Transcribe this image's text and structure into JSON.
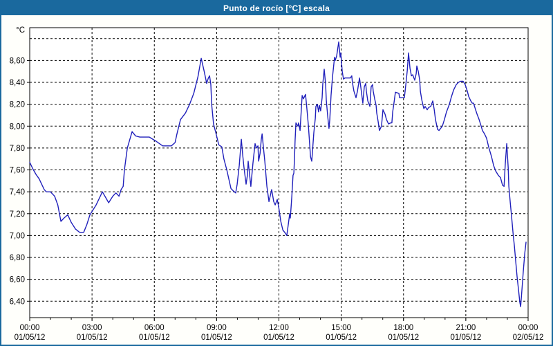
{
  "window": {
    "title": "Punto de rocío [°C] escala"
  },
  "colors": {
    "titlebar_bg": "#1a699e",
    "titlebar_text": "#ffffff",
    "frame_border": "#1a699e",
    "plot_bg": "#ffffff",
    "grid": "#000000",
    "axis": "#000000",
    "series_line": "#2020bb",
    "label_text": "#000000"
  },
  "chart_data": {
    "type": "line",
    "title": "Punto de rocío [°C] escala",
    "y_unit_label": "°C",
    "x_range": [
      0,
      24
    ],
    "y_range": [
      6.25,
      8.9
    ],
    "grid": "dashed",
    "legend_position": "none",
    "y_ticks": [
      {
        "v": 8.6,
        "label": "8,60"
      },
      {
        "v": 8.4,
        "label": "8,40"
      },
      {
        "v": 8.2,
        "label": "8,20"
      },
      {
        "v": 8.0,
        "label": "8,00"
      },
      {
        "v": 7.8,
        "label": "7,80"
      },
      {
        "v": 7.6,
        "label": "7,60"
      },
      {
        "v": 7.4,
        "label": "7,40"
      },
      {
        "v": 7.2,
        "label": "7,20"
      },
      {
        "v": 7.0,
        "label": "7,00"
      },
      {
        "v": 6.8,
        "label": "6,80"
      },
      {
        "v": 6.6,
        "label": "6,60"
      },
      {
        "v": 6.4,
        "label": "6,40"
      }
    ],
    "y_grid_extra": [
      8.8
    ],
    "x_ticks": [
      {
        "t": 0,
        "time": "00:00",
        "date": "01/05/12",
        "grid": false
      },
      {
        "t": 3,
        "time": "03:00",
        "date": "01/05/12",
        "grid": true
      },
      {
        "t": 6,
        "time": "06:00",
        "date": "01/05/12",
        "grid": true
      },
      {
        "t": 9,
        "time": "09:00",
        "date": "01/05/12",
        "grid": true
      },
      {
        "t": 12,
        "time": "12:00",
        "date": "01/05/12",
        "grid": true
      },
      {
        "t": 15,
        "time": "15:00",
        "date": "01/05/12",
        "grid": true
      },
      {
        "t": 18,
        "time": "18:00",
        "date": "01/05/12",
        "grid": true
      },
      {
        "t": 21,
        "time": "21:00",
        "date": "01/05/12",
        "grid": true
      },
      {
        "t": 24,
        "time": "00:00",
        "date": "02/05/12",
        "grid": false
      }
    ],
    "x_minor_tick_hours": 1,
    "series": [
      {
        "name": "Punto de rocío [°C]",
        "color": "#2020bb",
        "points": [
          [
            0,
            7.67
          ],
          [
            0.15,
            7.61
          ],
          [
            0.3,
            7.56
          ],
          [
            0.45,
            7.52
          ],
          [
            0.6,
            7.46
          ],
          [
            0.7,
            7.42
          ],
          [
            0.8,
            7.4
          ],
          [
            1,
            7.4
          ],
          [
            1.2,
            7.36
          ],
          [
            1.35,
            7.28
          ],
          [
            1.5,
            7.13
          ],
          [
            1.65,
            7.16
          ],
          [
            1.83,
            7.19
          ],
          [
            2,
            7.12
          ],
          [
            2.2,
            7.06
          ],
          [
            2.4,
            7.03
          ],
          [
            2.6,
            7.03
          ],
          [
            2.75,
            7.1
          ],
          [
            2.9,
            7.19
          ],
          [
            3,
            7.22
          ],
          [
            3.2,
            7.28
          ],
          [
            3.4,
            7.36
          ],
          [
            3.5,
            7.4
          ],
          [
            3.65,
            7.35
          ],
          [
            3.8,
            7.3
          ],
          [
            4,
            7.36
          ],
          [
            4.15,
            7.39
          ],
          [
            4.3,
            7.36
          ],
          [
            4.4,
            7.42
          ],
          [
            4.5,
            7.45
          ],
          [
            4.56,
            7.6
          ],
          [
            4.7,
            7.8
          ],
          [
            4.93,
            7.95
          ],
          [
            5.1,
            7.91
          ],
          [
            5.3,
            7.9
          ],
          [
            5.76,
            7.9
          ],
          [
            6.1,
            7.86
          ],
          [
            6.4,
            7.82
          ],
          [
            6.82,
            7.82
          ],
          [
            7,
            7.85
          ],
          [
            7.09,
            7.93
          ],
          [
            7.26,
            8.06
          ],
          [
            7.5,
            8.12
          ],
          [
            7.7,
            8.2
          ],
          [
            7.9,
            8.3
          ],
          [
            8.1,
            8.45
          ],
          [
            8.26,
            8.62
          ],
          [
            8.4,
            8.5
          ],
          [
            8.52,
            8.39
          ],
          [
            8.6,
            8.44
          ],
          [
            8.66,
            8.46
          ],
          [
            8.72,
            8.38
          ],
          [
            8.76,
            8.2
          ],
          [
            8.85,
            8.02
          ],
          [
            9,
            7.91
          ],
          [
            9.1,
            7.83
          ],
          [
            9.25,
            7.81
          ],
          [
            9.35,
            7.7
          ],
          [
            9.49,
            7.6
          ],
          [
            9.69,
            7.43
          ],
          [
            9.85,
            7.4
          ],
          [
            9.92,
            7.39
          ],
          [
            9.99,
            7.47
          ],
          [
            10.09,
            7.64
          ],
          [
            10.19,
            7.88
          ],
          [
            10.25,
            7.75
          ],
          [
            10.32,
            7.62
          ],
          [
            10.42,
            7.47
          ],
          [
            10.49,
            7.56
          ],
          [
            10.52,
            7.68
          ],
          [
            10.65,
            7.45
          ],
          [
            10.75,
            7.66
          ],
          [
            10.85,
            7.84
          ],
          [
            10.92,
            7.8
          ],
          [
            10.99,
            7.82
          ],
          [
            11.02,
            7.68
          ],
          [
            11.09,
            7.75
          ],
          [
            11.15,
            7.88
          ],
          [
            11.19,
            7.93
          ],
          [
            11.25,
            7.81
          ],
          [
            11.32,
            7.68
          ],
          [
            11.42,
            7.45
          ],
          [
            11.52,
            7.31
          ],
          [
            11.65,
            7.42
          ],
          [
            11.75,
            7.31
          ],
          [
            11.82,
            7.28
          ],
          [
            11.92,
            7.33
          ],
          [
            11.99,
            7.26
          ],
          [
            12.09,
            7.13
          ],
          [
            12.19,
            7.05
          ],
          [
            12.32,
            7.02
          ],
          [
            12.38,
            7.0
          ],
          [
            12.45,
            7.1
          ],
          [
            12.52,
            7.2
          ],
          [
            12.55,
            7.16
          ],
          [
            12.62,
            7.35
          ],
          [
            12.68,
            7.55
          ],
          [
            12.72,
            7.57
          ],
          [
            12.75,
            7.7
          ],
          [
            12.78,
            7.87
          ],
          [
            12.82,
            8.03
          ],
          [
            12.92,
            8.0
          ],
          [
            12.95,
            8.03
          ],
          [
            13.02,
            7.96
          ],
          [
            13.12,
            8.28
          ],
          [
            13.18,
            8.25
          ],
          [
            13.28,
            8.29
          ],
          [
            13.35,
            8.15
          ],
          [
            13.42,
            8.0
          ],
          [
            13.52,
            7.72
          ],
          [
            13.58,
            7.68
          ],
          [
            13.68,
            7.94
          ],
          [
            13.75,
            8.07
          ],
          [
            13.78,
            8.18
          ],
          [
            13.85,
            8.2
          ],
          [
            13.91,
            8.13
          ],
          [
            13.95,
            8.19
          ],
          [
            14.01,
            8.14
          ],
          [
            14.08,
            8.26
          ],
          [
            14.11,
            8.38
          ],
          [
            14.18,
            8.52
          ],
          [
            14.25,
            8.38
          ],
          [
            14.28,
            8.24
          ],
          [
            14.35,
            8.09
          ],
          [
            14.41,
            7.98
          ],
          [
            14.45,
            8.06
          ],
          [
            14.51,
            8.28
          ],
          [
            14.58,
            8.45
          ],
          [
            14.68,
            8.63
          ],
          [
            14.71,
            8.6
          ],
          [
            14.78,
            8.64
          ],
          [
            14.88,
            8.77
          ],
          [
            14.95,
            8.63
          ],
          [
            14.98,
            8.67
          ],
          [
            15.05,
            8.5
          ],
          [
            15.11,
            8.43
          ],
          [
            15.18,
            8.44
          ],
          [
            15.28,
            8.44
          ],
          [
            15.44,
            8.44
          ],
          [
            15.51,
            8.46
          ],
          [
            15.54,
            8.4
          ],
          [
            15.61,
            8.32
          ],
          [
            15.71,
            8.26
          ],
          [
            15.78,
            8.32
          ],
          [
            15.88,
            8.44
          ],
          [
            15.94,
            8.36
          ],
          [
            16.04,
            8.21
          ],
          [
            16.11,
            8.36
          ],
          [
            16.18,
            8.39
          ],
          [
            16.21,
            8.32
          ],
          [
            16.28,
            8.23
          ],
          [
            16.38,
            8.18
          ],
          [
            16.44,
            8.36
          ],
          [
            16.51,
            8.38
          ],
          [
            16.54,
            8.32
          ],
          [
            16.61,
            8.25
          ],
          [
            16.68,
            8.19
          ],
          [
            16.71,
            8.12
          ],
          [
            16.78,
            8.04
          ],
          [
            16.84,
            7.96
          ],
          [
            16.94,
            8.0
          ],
          [
            17.01,
            8.15
          ],
          [
            17.11,
            8.11
          ],
          [
            17.18,
            8.06
          ],
          [
            17.28,
            8.02
          ],
          [
            17.38,
            8.03
          ],
          [
            17.44,
            8.03
          ],
          [
            17.48,
            8.13
          ],
          [
            17.54,
            8.21
          ],
          [
            17.61,
            8.31
          ],
          [
            17.78,
            8.3
          ],
          [
            17.81,
            8.26
          ],
          [
            18.04,
            8.26
          ],
          [
            18.11,
            8.38
          ],
          [
            18.18,
            8.51
          ],
          [
            18.24,
            8.67
          ],
          [
            18.31,
            8.53
          ],
          [
            18.38,
            8.46
          ],
          [
            18.44,
            8.47
          ],
          [
            18.54,
            8.42
          ],
          [
            18.61,
            8.48
          ],
          [
            18.64,
            8.55
          ],
          [
            18.71,
            8.5
          ],
          [
            18.78,
            8.42
          ],
          [
            18.81,
            8.32
          ],
          [
            18.88,
            8.24
          ],
          [
            18.94,
            8.19
          ],
          [
            18.98,
            8.16
          ],
          [
            19.04,
            8.18
          ],
          [
            19.14,
            8.15
          ],
          [
            19.21,
            8.17
          ],
          [
            19.31,
            8.18
          ],
          [
            19.41,
            8.23
          ],
          [
            19.48,
            8.15
          ],
          [
            19.54,
            8.06
          ],
          [
            19.64,
            7.97
          ],
          [
            19.71,
            7.96
          ],
          [
            19.87,
            8.0
          ],
          [
            19.97,
            8.06
          ],
          [
            20.07,
            8.13
          ],
          [
            20.21,
            8.2
          ],
          [
            20.31,
            8.27
          ],
          [
            20.41,
            8.33
          ],
          [
            20.54,
            8.38
          ],
          [
            20.64,
            8.4
          ],
          [
            20.74,
            8.41
          ],
          [
            20.87,
            8.41
          ],
          [
            20.97,
            8.38
          ],
          [
            21.07,
            8.32
          ],
          [
            21.14,
            8.27
          ],
          [
            21.24,
            8.23
          ],
          [
            21.31,
            8.21
          ],
          [
            21.37,
            8.21
          ],
          [
            21.47,
            8.15
          ],
          [
            21.54,
            8.11
          ],
          [
            21.64,
            8.06
          ],
          [
            21.74,
            8.0
          ],
          [
            21.8,
            7.96
          ],
          [
            21.9,
            7.93
          ],
          [
            22.0,
            7.89
          ],
          [
            22.1,
            7.81
          ],
          [
            22.24,
            7.72
          ],
          [
            22.34,
            7.64
          ],
          [
            22.44,
            7.59
          ],
          [
            22.57,
            7.55
          ],
          [
            22.67,
            7.53
          ],
          [
            22.77,
            7.46
          ],
          [
            22.84,
            7.45
          ],
          [
            22.9,
            7.66
          ],
          [
            22.97,
            7.84
          ],
          [
            23.04,
            7.62
          ],
          [
            23.07,
            7.45
          ],
          [
            23.14,
            7.3
          ],
          [
            23.2,
            7.18
          ],
          [
            23.27,
            7.03
          ],
          [
            23.34,
            6.9
          ],
          [
            23.4,
            6.77
          ],
          [
            23.47,
            6.62
          ],
          [
            23.54,
            6.5
          ],
          [
            23.6,
            6.39
          ],
          [
            23.64,
            6.35
          ],
          [
            23.7,
            6.5
          ],
          [
            23.77,
            6.68
          ],
          [
            23.84,
            6.84
          ],
          [
            23.9,
            6.94
          ]
        ]
      }
    ]
  }
}
